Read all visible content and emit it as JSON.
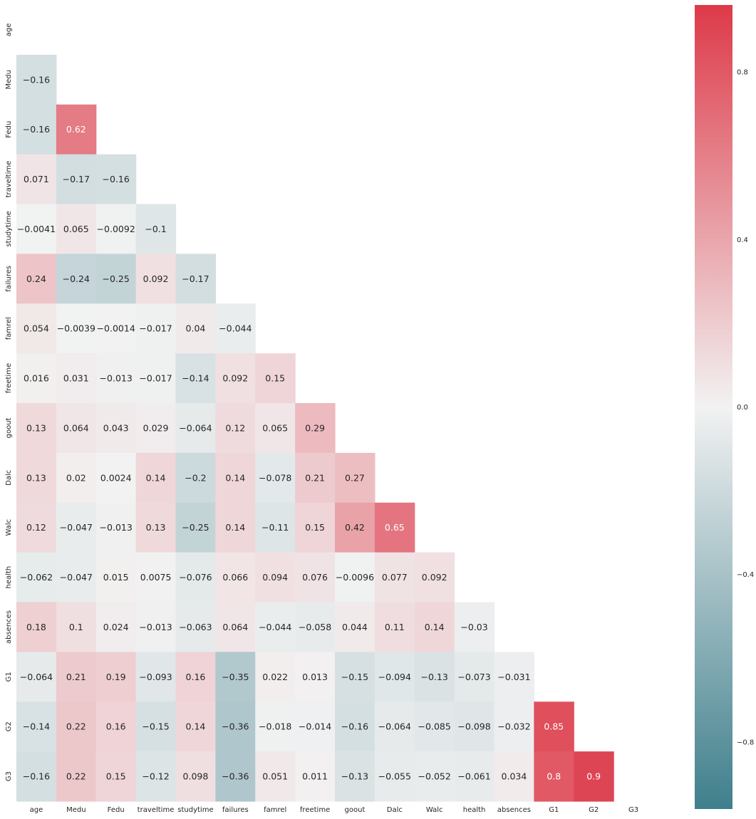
{
  "chart_data": {
    "type": "heatmap",
    "title": "",
    "xlabel": "",
    "ylabel": "",
    "mask": "upper-triangle-including-diagonal",
    "variables": [
      "age",
      "Medu",
      "Fedu",
      "traveltime",
      "studytime",
      "failures",
      "famrel",
      "freetime",
      "goout",
      "Dalc",
      "Walc",
      "health",
      "absences",
      "G1",
      "G2",
      "G3"
    ],
    "values": [
      [
        null,
        null,
        null,
        null,
        null,
        null,
        null,
        null,
        null,
        null,
        null,
        null,
        null,
        null,
        null,
        null
      ],
      [
        -0.16,
        null,
        null,
        null,
        null,
        null,
        null,
        null,
        null,
        null,
        null,
        null,
        null,
        null,
        null,
        null
      ],
      [
        -0.16,
        0.62,
        null,
        null,
        null,
        null,
        null,
        null,
        null,
        null,
        null,
        null,
        null,
        null,
        null,
        null
      ],
      [
        0.071,
        -0.17,
        -0.16,
        null,
        null,
        null,
        null,
        null,
        null,
        null,
        null,
        null,
        null,
        null,
        null,
        null
      ],
      [
        -0.0041,
        0.065,
        -0.0092,
        -0.1,
        null,
        null,
        null,
        null,
        null,
        null,
        null,
        null,
        null,
        null,
        null,
        null
      ],
      [
        0.24,
        -0.24,
        -0.25,
        0.092,
        -0.17,
        null,
        null,
        null,
        null,
        null,
        null,
        null,
        null,
        null,
        null,
        null
      ],
      [
        0.054,
        -0.0039,
        -0.0014,
        -0.017,
        0.04,
        -0.044,
        null,
        null,
        null,
        null,
        null,
        null,
        null,
        null,
        null,
        null
      ],
      [
        0.016,
        0.031,
        -0.013,
        -0.017,
        -0.14,
        0.092,
        0.15,
        null,
        null,
        null,
        null,
        null,
        null,
        null,
        null,
        null
      ],
      [
        0.13,
        0.064,
        0.043,
        0.029,
        -0.064,
        0.12,
        0.065,
        0.29,
        null,
        null,
        null,
        null,
        null,
        null,
        null,
        null
      ],
      [
        0.13,
        0.02,
        0.0024,
        0.14,
        -0.2,
        0.14,
        -0.078,
        0.21,
        0.27,
        null,
        null,
        null,
        null,
        null,
        null,
        null
      ],
      [
        0.12,
        -0.047,
        -0.013,
        0.13,
        -0.25,
        0.14,
        -0.11,
        0.15,
        0.42,
        0.65,
        null,
        null,
        null,
        null,
        null,
        null
      ],
      [
        -0.062,
        -0.047,
        0.015,
        0.0075,
        -0.076,
        0.066,
        0.094,
        0.076,
        -0.0096,
        0.077,
        0.092,
        null,
        null,
        null,
        null,
        null
      ],
      [
        0.18,
        0.1,
        0.024,
        -0.013,
        -0.063,
        0.064,
        -0.044,
        -0.058,
        0.044,
        0.11,
        0.14,
        -0.03,
        null,
        null,
        null,
        null
      ],
      [
        -0.064,
        0.21,
        0.19,
        -0.093,
        0.16,
        -0.35,
        0.022,
        0.013,
        -0.15,
        -0.094,
        -0.13,
        -0.073,
        -0.031,
        null,
        null,
        null
      ],
      [
        -0.14,
        0.22,
        0.16,
        -0.15,
        0.14,
        -0.36,
        -0.018,
        -0.014,
        -0.16,
        -0.064,
        -0.085,
        -0.098,
        -0.032,
        0.85,
        null,
        null
      ],
      [
        -0.16,
        0.22,
        0.15,
        -0.12,
        0.098,
        -0.36,
        0.051,
        0.011,
        -0.13,
        -0.055,
        -0.052,
        -0.061,
        0.034,
        0.8,
        0.9,
        null
      ]
    ],
    "colorbar": {
      "range": [
        -0.96,
        0.96
      ],
      "ticks": [
        0.8,
        0.4,
        0.0,
        -0.4,
        -0.8
      ],
      "tick_labels": [
        "0.8",
        "0.4",
        "0.0",
        "−0.4",
        "−0.8"
      ]
    },
    "colors": {
      "negative": "#3f7f8c",
      "center": "#f2f2f2",
      "positive": "#dd3a49",
      "text_dark": "#262626",
      "text_light": "#ffffff"
    }
  }
}
